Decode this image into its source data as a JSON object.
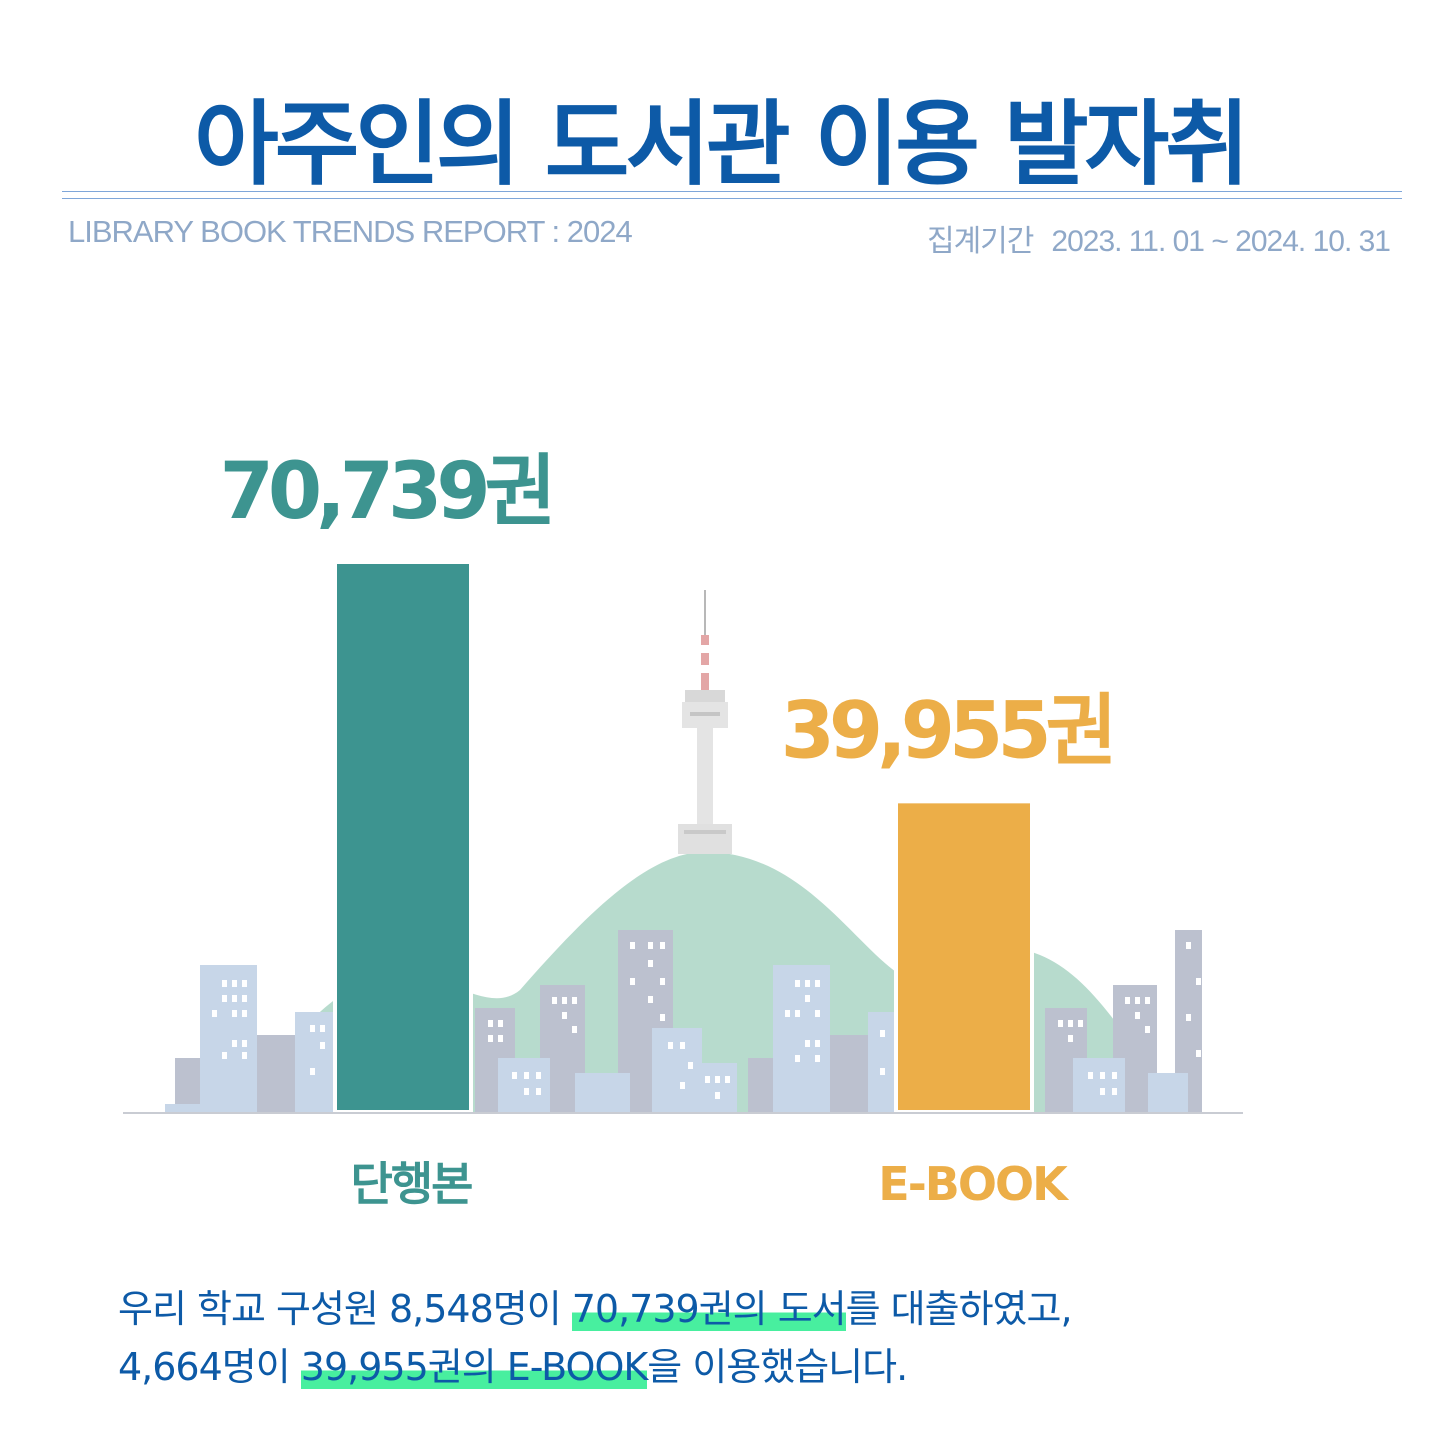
{
  "header": {
    "title": "아주인의 도서관 이용 발자취",
    "subtitle": "LIBRARY BOOK TRENDS REPORT : 2024",
    "period_label": "집계기간",
    "period_value": "2023. 11. 01 ~ 2024. 10. 31"
  },
  "colors": {
    "title": "#0d5aa7",
    "book_bar": "#3d9490",
    "ebook_bar": "#ecae48",
    "highlight": "#48ef9f"
  },
  "chart_data": {
    "type": "bar",
    "categories": [
      "단행본",
      "E-BOOK"
    ],
    "values": [
      70739,
      39955
    ],
    "value_labels": [
      "70,739권",
      "39,955권"
    ],
    "colors": [
      "#3d9490",
      "#ecae48"
    ],
    "ylim": [
      0,
      70739
    ],
    "grid": false
  },
  "summary": {
    "line1_a": "우리 학교 구성원 8,548명이 ",
    "line1_hl": "70,739권의 도서",
    "line1_b": "를 대출하였고,",
    "line2_a": "4,664명이 ",
    "line2_hl": "39,955권의 E-BOOK",
    "line2_b": "을 이용했습니다."
  }
}
